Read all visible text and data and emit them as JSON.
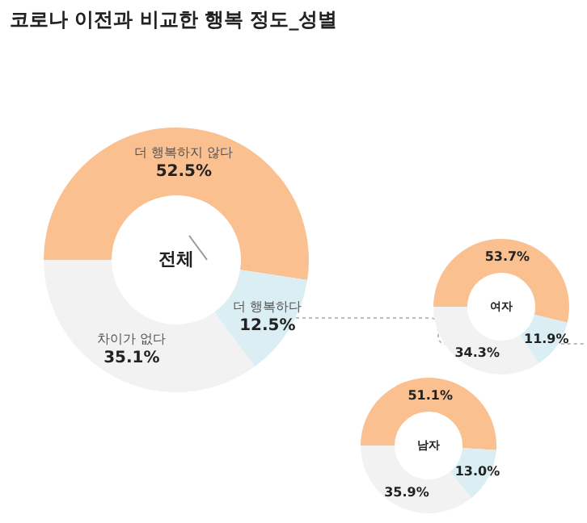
{
  "chart_data": [
    {
      "type": "donut",
      "title": "코로나 이전과 비교한 행복 정도_성별",
      "annotations": [
        "전체"
      ],
      "categories": [
        "더 행복하지 않다",
        "더 행복하다",
        "차이가 없다"
      ],
      "values": [
        52.5,
        12.5,
        35.1
      ],
      "value_labels": [
        "52.5%",
        "12.5%",
        "35.1%"
      ],
      "colors": [
        "#fac090",
        "#daeef3",
        "#f2f2f2"
      ]
    },
    {
      "type": "donut",
      "annotations": [
        "여자"
      ],
      "categories": [
        null,
        null,
        null
      ],
      "values": [
        53.7,
        11.9,
        34.3
      ],
      "value_labels": [
        "53.7%",
        "11.9%",
        "34.3%"
      ],
      "colors": [
        "#fac090",
        "#daeef3",
        "#f2f2f2"
      ]
    },
    {
      "type": "donut",
      "annotations": [
        "남자"
      ],
      "categories": [
        null,
        null,
        null
      ],
      "values": [
        51.1,
        13.0,
        35.9
      ],
      "value_labels": [
        "51.1%",
        "13.0%",
        "35.9%"
      ],
      "colors": [
        "#fac090",
        "#daeef3",
        "#f2f2f2"
      ]
    }
  ]
}
